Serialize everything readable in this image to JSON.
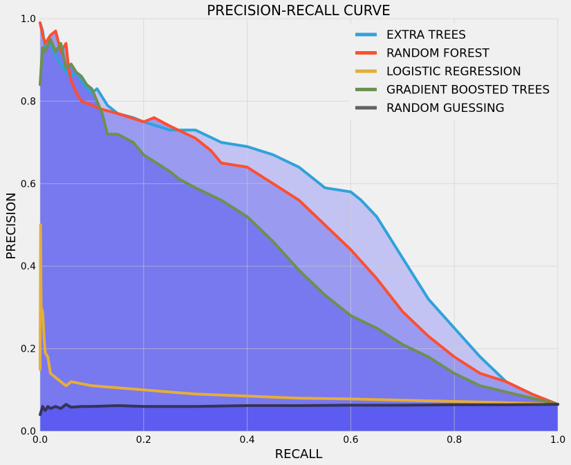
{
  "chart_data": {
    "type": "line",
    "title": "PRECISION-RECALL CURVE",
    "xlabel": "RECALL",
    "ylabel": "PRECISION",
    "xlim": [
      0,
      1
    ],
    "ylim": [
      0,
      1
    ],
    "xticks": [
      "0.0",
      "0.2",
      "0.4",
      "0.6",
      "0.8",
      "1.0"
    ],
    "yticks": [
      "0.0",
      "0.2",
      "0.4",
      "0.6",
      "0.8",
      "1.0"
    ],
    "grid": true,
    "legend_position": "top-right",
    "fill_colors": {
      "fill-under-extra-trees": "#c3c3f3",
      "fill-under-random-forest": "#9a9af1",
      "fill-under-gradient-boosted": "#7878ef",
      "fill-under-random-guessing": "#5c5cf0"
    },
    "series": [
      {
        "name": "EXTRA TREES",
        "color": "#30a2da",
        "x": [
          0.0,
          0.005,
          0.01,
          0.02,
          0.03,
          0.04,
          0.05,
          0.06,
          0.07,
          0.08,
          0.09,
          0.1,
          0.11,
          0.12,
          0.13,
          0.15,
          0.18,
          0.2,
          0.25,
          0.3,
          0.35,
          0.4,
          0.45,
          0.5,
          0.55,
          0.6,
          0.62,
          0.65,
          0.7,
          0.75,
          0.8,
          0.85,
          0.9,
          0.95,
          1.0
        ],
        "y": [
          0.99,
          0.97,
          0.93,
          0.94,
          0.91,
          0.89,
          0.87,
          0.86,
          0.87,
          0.85,
          0.83,
          0.82,
          0.83,
          0.81,
          0.79,
          0.77,
          0.76,
          0.75,
          0.73,
          0.73,
          0.7,
          0.69,
          0.67,
          0.64,
          0.59,
          0.58,
          0.56,
          0.52,
          0.42,
          0.32,
          0.25,
          0.18,
          0.12,
          0.09,
          0.065
        ]
      },
      {
        "name": "RANDOM FOREST",
        "color": "#fc4f30",
        "x": [
          0.0,
          0.005,
          0.01,
          0.02,
          0.03,
          0.04,
          0.05,
          0.055,
          0.06,
          0.07,
          0.08,
          0.1,
          0.12,
          0.15,
          0.2,
          0.22,
          0.25,
          0.3,
          0.33,
          0.35,
          0.4,
          0.45,
          0.5,
          0.55,
          0.6,
          0.65,
          0.7,
          0.75,
          0.8,
          0.85,
          0.9,
          0.95,
          1.0
        ],
        "y": [
          0.99,
          0.96,
          0.94,
          0.96,
          0.97,
          0.92,
          0.94,
          0.88,
          0.85,
          0.82,
          0.8,
          0.79,
          0.78,
          0.77,
          0.75,
          0.76,
          0.74,
          0.71,
          0.68,
          0.65,
          0.64,
          0.6,
          0.56,
          0.5,
          0.44,
          0.37,
          0.29,
          0.23,
          0.18,
          0.14,
          0.12,
          0.09,
          0.065
        ]
      },
      {
        "name": "LOGISTIC REGRESSION",
        "color": "#e5ae38",
        "x": [
          0.0,
          0.001,
          0.002,
          0.005,
          0.008,
          0.01,
          0.015,
          0.02,
          0.03,
          0.04,
          0.05,
          0.06,
          0.08,
          0.1,
          0.15,
          0.2,
          0.3,
          0.4,
          0.5,
          0.6,
          0.7,
          0.8,
          0.9,
          1.0
        ],
        "y": [
          0.15,
          0.5,
          0.3,
          0.29,
          0.22,
          0.19,
          0.18,
          0.14,
          0.13,
          0.12,
          0.11,
          0.12,
          0.115,
          0.11,
          0.105,
          0.1,
          0.09,
          0.085,
          0.08,
          0.078,
          0.075,
          0.072,
          0.069,
          0.065
        ]
      },
      {
        "name": "GRADIENT BOOSTED TREES",
        "color": "#6d904f",
        "x": [
          0.0,
          0.003,
          0.005,
          0.01,
          0.02,
          0.03,
          0.04,
          0.05,
          0.06,
          0.07,
          0.08,
          0.09,
          0.1,
          0.11,
          0.12,
          0.13,
          0.15,
          0.18,
          0.2,
          0.25,
          0.27,
          0.3,
          0.35,
          0.4,
          0.45,
          0.5,
          0.55,
          0.6,
          0.65,
          0.7,
          0.75,
          0.8,
          0.85,
          0.9,
          0.95,
          1.0
        ],
        "y": [
          0.84,
          0.9,
          0.93,
          0.92,
          0.95,
          0.92,
          0.94,
          0.88,
          0.89,
          0.87,
          0.86,
          0.84,
          0.83,
          0.8,
          0.77,
          0.72,
          0.72,
          0.7,
          0.67,
          0.63,
          0.61,
          0.59,
          0.56,
          0.52,
          0.46,
          0.39,
          0.33,
          0.28,
          0.25,
          0.21,
          0.18,
          0.14,
          0.11,
          0.095,
          0.08,
          0.065
        ]
      },
      {
        "name": "RANDOM GUESSING",
        "color": "#606060",
        "x": [
          0.0,
          0.005,
          0.01,
          0.015,
          0.02,
          0.03,
          0.04,
          0.05,
          0.06,
          0.08,
          0.1,
          0.15,
          0.2,
          0.3,
          0.4,
          0.5,
          0.6,
          0.7,
          0.8,
          0.9,
          1.0
        ],
        "y": [
          0.04,
          0.06,
          0.05,
          0.06,
          0.055,
          0.06,
          0.055,
          0.065,
          0.058,
          0.06,
          0.06,
          0.062,
          0.06,
          0.06,
          0.062,
          0.062,
          0.063,
          0.063,
          0.064,
          0.064,
          0.065
        ]
      }
    ]
  }
}
